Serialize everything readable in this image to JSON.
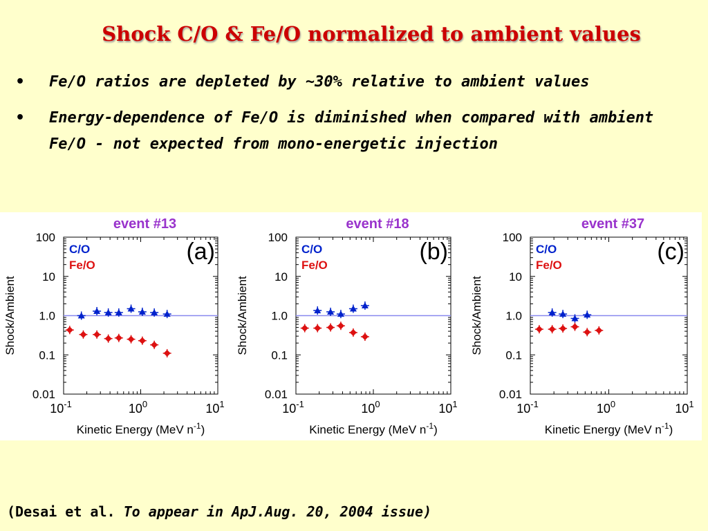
{
  "slide": {
    "title": "Shock C/O & Fe/O normalized to ambient values",
    "bullets": [
      {
        "marker": "•",
        "text": "Fe/O ratios are depleted by ~30% relative to ambient values"
      },
      {
        "marker": "•",
        "text": "Energy-dependence of Fe/O is diminished when compared with ambient Fe/O - not expected from mono-energetic injection"
      }
    ],
    "citation": {
      "part1": "(Desai et al.",
      "part2": "To appear in  ApJ.Aug. 20, 2004 issue)"
    }
  },
  "colors": {
    "background": "#ffffcc",
    "title": "#cc0000",
    "event_title": "#9933cc",
    "co": "#0022cc",
    "feo": "#dd1111",
    "reference_line": "#8888ee"
  },
  "chart_data": [
    {
      "type": "scatter",
      "title": "event #13",
      "panel_label": "(a)",
      "xlabel": "Kinetic Energy (MeV n",
      "xlabel_sup": "-1",
      "xlabel_end": ")",
      "ylabel": "Shock/Ambient",
      "xscale": "log",
      "yscale": "log",
      "xlim": [
        0.1,
        10
      ],
      "ylim": [
        0.01,
        100
      ],
      "xticks": [
        {
          "base": "10",
          "exp": "-1"
        },
        {
          "base": "10",
          "exp": "0"
        },
        {
          "base": "10",
          "exp": "1"
        }
      ],
      "yticks": [
        "100",
        "10",
        "1.0",
        "0.1",
        "0.01"
      ],
      "reference_line": 1.0,
      "legend_position": "top-left",
      "series": [
        {
          "name": "C/O",
          "marker": "triangle",
          "color": "#0022cc",
          "x": [
            0.17,
            0.27,
            0.38,
            0.52,
            0.75,
            1.05,
            1.5,
            2.2
          ],
          "y": [
            1.0,
            1.3,
            1.2,
            1.2,
            1.5,
            1.25,
            1.2,
            1.1
          ]
        },
        {
          "name": "Fe/O",
          "marker": "diamond",
          "color": "#dd1111",
          "x": [
            0.12,
            0.18,
            0.27,
            0.38,
            0.52,
            0.75,
            1.05,
            1.5,
            2.2
          ],
          "y": [
            0.43,
            0.33,
            0.33,
            0.26,
            0.27,
            0.25,
            0.23,
            0.18,
            0.11
          ]
        }
      ]
    },
    {
      "type": "scatter",
      "title": "event #18",
      "panel_label": "(b)",
      "xlabel": "Kinetic Energy (MeV n",
      "xlabel_sup": "-1",
      "xlabel_end": ")",
      "ylabel": "Shock/Ambient",
      "xscale": "log",
      "yscale": "log",
      "xlim": [
        0.1,
        10
      ],
      "ylim": [
        0.01,
        100
      ],
      "xticks": [
        {
          "base": "10",
          "exp": "-1"
        },
        {
          "base": "10",
          "exp": "0"
        },
        {
          "base": "10",
          "exp": "1"
        }
      ],
      "yticks": [
        "100",
        "10",
        "1.0",
        "0.1",
        "0.01"
      ],
      "reference_line": 1.0,
      "legend_position": "top-left",
      "series": [
        {
          "name": "C/O",
          "marker": "triangle",
          "color": "#0022cc",
          "x": [
            0.19,
            0.28,
            0.38,
            0.55,
            0.78
          ],
          "y": [
            1.35,
            1.25,
            1.1,
            1.5,
            1.8
          ]
        },
        {
          "name": "Fe/O",
          "marker": "diamond",
          "color": "#dd1111",
          "x": [
            0.13,
            0.19,
            0.28,
            0.38,
            0.55,
            0.78
          ],
          "y": [
            0.48,
            0.48,
            0.5,
            0.55,
            0.37,
            0.29
          ]
        }
      ]
    },
    {
      "type": "scatter",
      "title": "event #37",
      "panel_label": "(c)",
      "xlabel": "Kinetic Energy (MeV n",
      "xlabel_sup": "-1",
      "xlabel_end": ")",
      "ylabel": "Shock/Ambient",
      "xscale": "log",
      "yscale": "log",
      "xlim": [
        0.1,
        10
      ],
      "ylim": [
        0.01,
        100
      ],
      "xticks": [
        {
          "base": "10",
          "exp": "-1"
        },
        {
          "base": "10",
          "exp": "0"
        },
        {
          "base": "10",
          "exp": "1"
        }
      ],
      "yticks": [
        "100",
        "10",
        "1.0",
        "0.1",
        "0.01"
      ],
      "reference_line": 1.0,
      "legend_position": "top-left",
      "series": [
        {
          "name": "C/O",
          "marker": "triangle",
          "color": "#0022cc",
          "x": [
            0.19,
            0.26,
            0.37,
            0.53
          ],
          "y": [
            1.2,
            1.1,
            0.85,
            1.05
          ]
        },
        {
          "name": "Fe/O",
          "marker": "diamond",
          "color": "#dd1111",
          "x": [
            0.13,
            0.19,
            0.26,
            0.37,
            0.53,
            0.75
          ],
          "y": [
            0.45,
            0.45,
            0.47,
            0.52,
            0.38,
            0.42
          ]
        }
      ]
    }
  ]
}
